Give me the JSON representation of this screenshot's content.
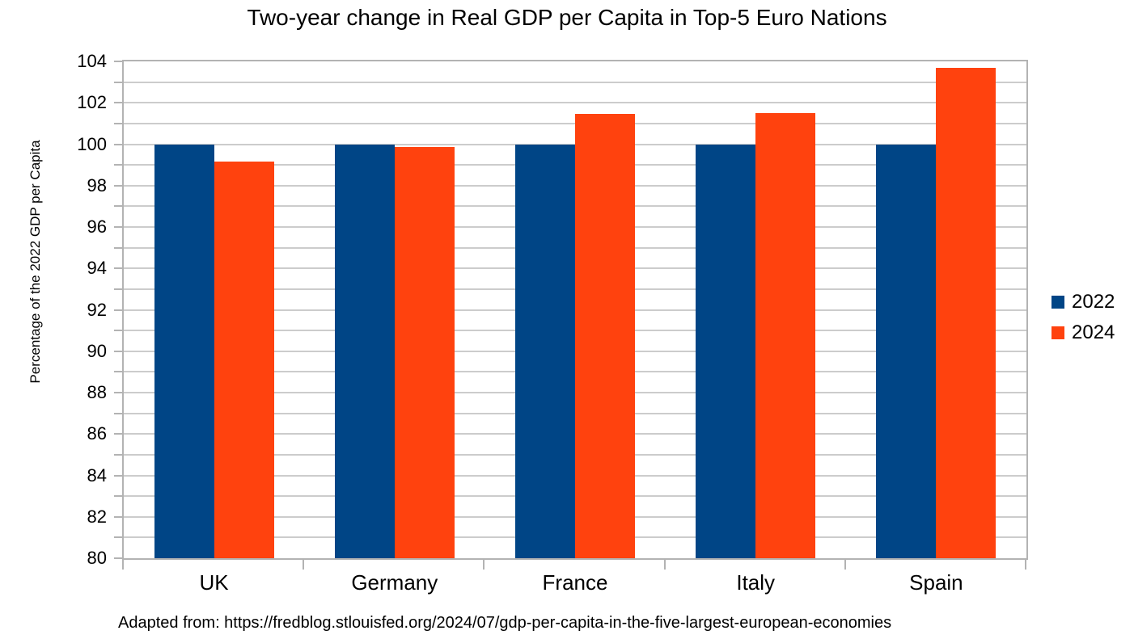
{
  "chart_data": {
    "type": "bar",
    "title": "Two-year change in Real GDP per Capita in Top-5 Euro Nations",
    "footnote": "Adapted from: https://fredblog.stlouisfed.org/2024/07/gdp-per-capita-in-the-five-largest-european-economies",
    "categories": [
      "UK",
      "Germany",
      "France",
      "Italy",
      "Spain"
    ],
    "series": [
      {
        "name": "2022",
        "color": "#004586",
        "values": [
          100,
          100,
          100,
          100,
          100
        ]
      },
      {
        "name": "2024",
        "color": "#FF420E",
        "values": [
          99.15,
          99.85,
          101.45,
          101.5,
          103.7
        ]
      }
    ],
    "xlabel": "",
    "ylabel": "Percentage of the 2022 GDP per Capita",
    "ylim": [
      80,
      104
    ],
    "yticks": [
      80,
      82,
      84,
      86,
      88,
      90,
      92,
      94,
      96,
      98,
      100,
      102,
      104
    ],
    "gridline_step": 1,
    "grid": true,
    "legend_position": "right",
    "colors": {
      "axis": "#b3b3b3",
      "gridline": "#cccccc",
      "text": "#000000",
      "background": "#ffffff"
    }
  }
}
